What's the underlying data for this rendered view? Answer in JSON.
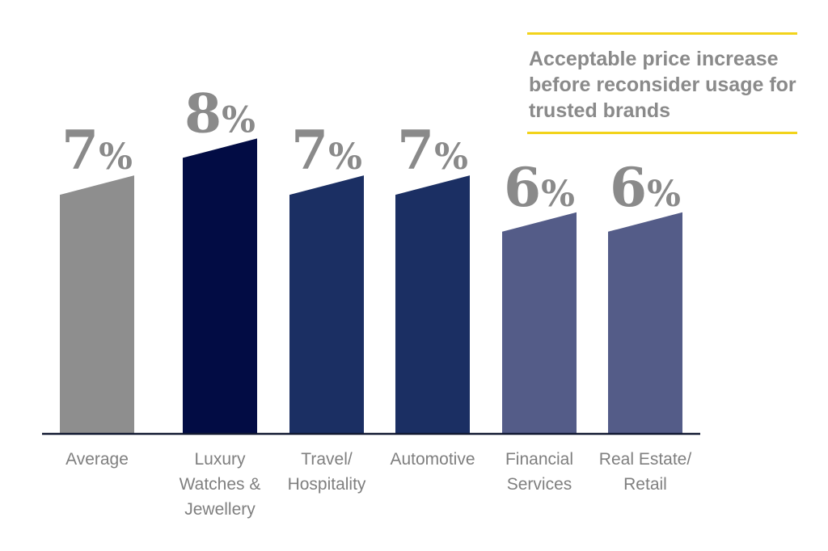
{
  "chart_data": {
    "type": "bar",
    "title": "Acceptable price increase before reconsider usage for trusted brands",
    "categories": [
      [
        "Average"
      ],
      [
        "Luxury",
        "Watches &",
        "Jewellery"
      ],
      [
        "Travel/",
        "Hospitality"
      ],
      [
        "Automotive"
      ],
      [
        "Financial",
        "Services"
      ],
      [
        "Real Estate/",
        "Retail"
      ]
    ],
    "values": [
      7,
      8,
      7,
      7,
      6,
      6
    ],
    "value_labels": [
      "7%",
      "8%",
      "7%",
      "7%",
      "6%",
      "6%"
    ],
    "ylim": [
      0,
      9
    ],
    "grid": false,
    "legend": "none",
    "colors": {
      "bars": [
        "#8e8e8e",
        "#020c44",
        "#1b2f63",
        "#1b2f63",
        "#545c88",
        "#545c88"
      ],
      "baseline": "#101830",
      "labels": "#8a8a8a",
      "accent_rule": "#f2d31b"
    }
  }
}
